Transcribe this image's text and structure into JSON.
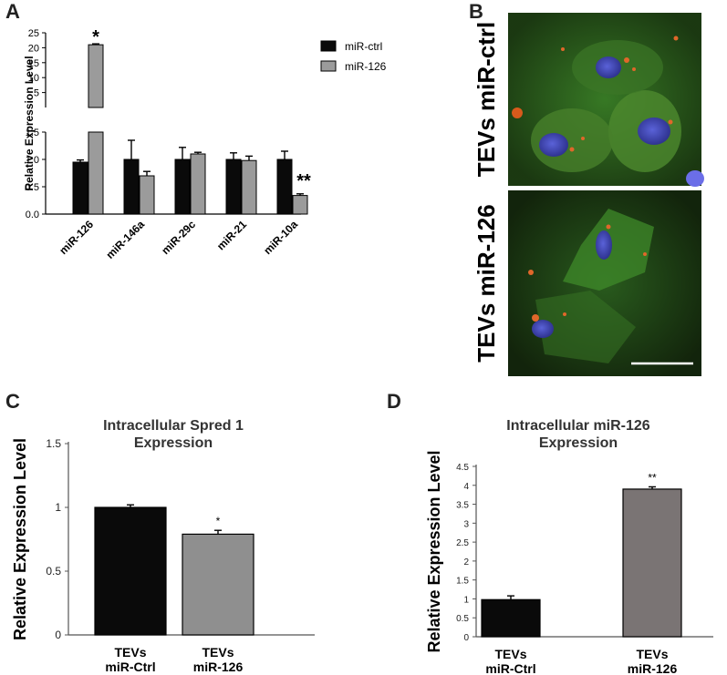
{
  "panels": {
    "a": "A",
    "b": "B",
    "c": "C",
    "d": "D"
  },
  "micro": {
    "label_top": "TEVs miR-ctrl",
    "label_bottom": "TEVs miR-126"
  },
  "colors": {
    "ctrl": "#0a0a0a",
    "treated_a": "#9b9b9b",
    "treated_c": "#8f8f8f",
    "treated_d": "#7a7474"
  },
  "chart_data": [
    {
      "id": "A",
      "type": "bar",
      "title": "",
      "ylabel": "Relative Expression Level",
      "categories": [
        "miR-126",
        "miR-146a",
        "miR-29c",
        "miR-21",
        "miR-10a"
      ],
      "series": [
        {
          "name": "miR-ctrl",
          "values": [
            0.95,
            1.0,
            1.0,
            1.0,
            1.0
          ],
          "errors": [
            0.04,
            0.35,
            0.22,
            0.12,
            0.15
          ]
        },
        {
          "name": "miR-126",
          "values": [
            21.0,
            0.7,
            1.1,
            0.98,
            0.34
          ],
          "errors": [
            0.3,
            0.08,
            0.03,
            0.08,
            0.03
          ]
        }
      ],
      "y_lower_ticks": [
        "0.0",
        "0.5",
        "1.0",
        "1.5"
      ],
      "y_upper_ticks": [
        "5",
        "10",
        "15",
        "20",
        "25"
      ],
      "y_break": [
        1.5,
        5
      ],
      "ylim": [
        0,
        25
      ],
      "annotations": [
        "*",
        "**"
      ],
      "legend": "top-right"
    },
    {
      "id": "C",
      "type": "bar",
      "title": "Intracellular Spred 1",
      "title2": "Expression",
      "ylabel": "Relative Expression Level",
      "categories": [
        {
          "l1": "TEVs",
          "l2": "miR-Ctrl"
        },
        {
          "l1": "TEVs",
          "l2": "miR-126"
        }
      ],
      "values": [
        1.0,
        0.79
      ],
      "errors": [
        0.02,
        0.03
      ],
      "y_ticks": [
        "0",
        "0.5",
        "1",
        "1.5"
      ],
      "ylim": [
        0,
        1.5
      ],
      "annotations": [
        "",
        "*"
      ]
    },
    {
      "id": "D",
      "type": "bar",
      "title": "Intracellular miR-126",
      "title2": "Expression",
      "ylabel": "Relative Expression Level",
      "categories": [
        {
          "l1": "TEVs",
          "l2": "miR-Ctrl"
        },
        {
          "l1": "TEVs",
          "l2": "miR-126"
        }
      ],
      "values": [
        0.98,
        3.9
      ],
      "errors": [
        0.1,
        0.06
      ],
      "y_ticks": [
        "0",
        "0.5",
        "1",
        "1.5",
        "2",
        "2.5",
        "3",
        "3.5",
        "4",
        "4.5"
      ],
      "ylim": [
        0,
        4.5
      ],
      "annotations": [
        "",
        "**"
      ]
    }
  ]
}
